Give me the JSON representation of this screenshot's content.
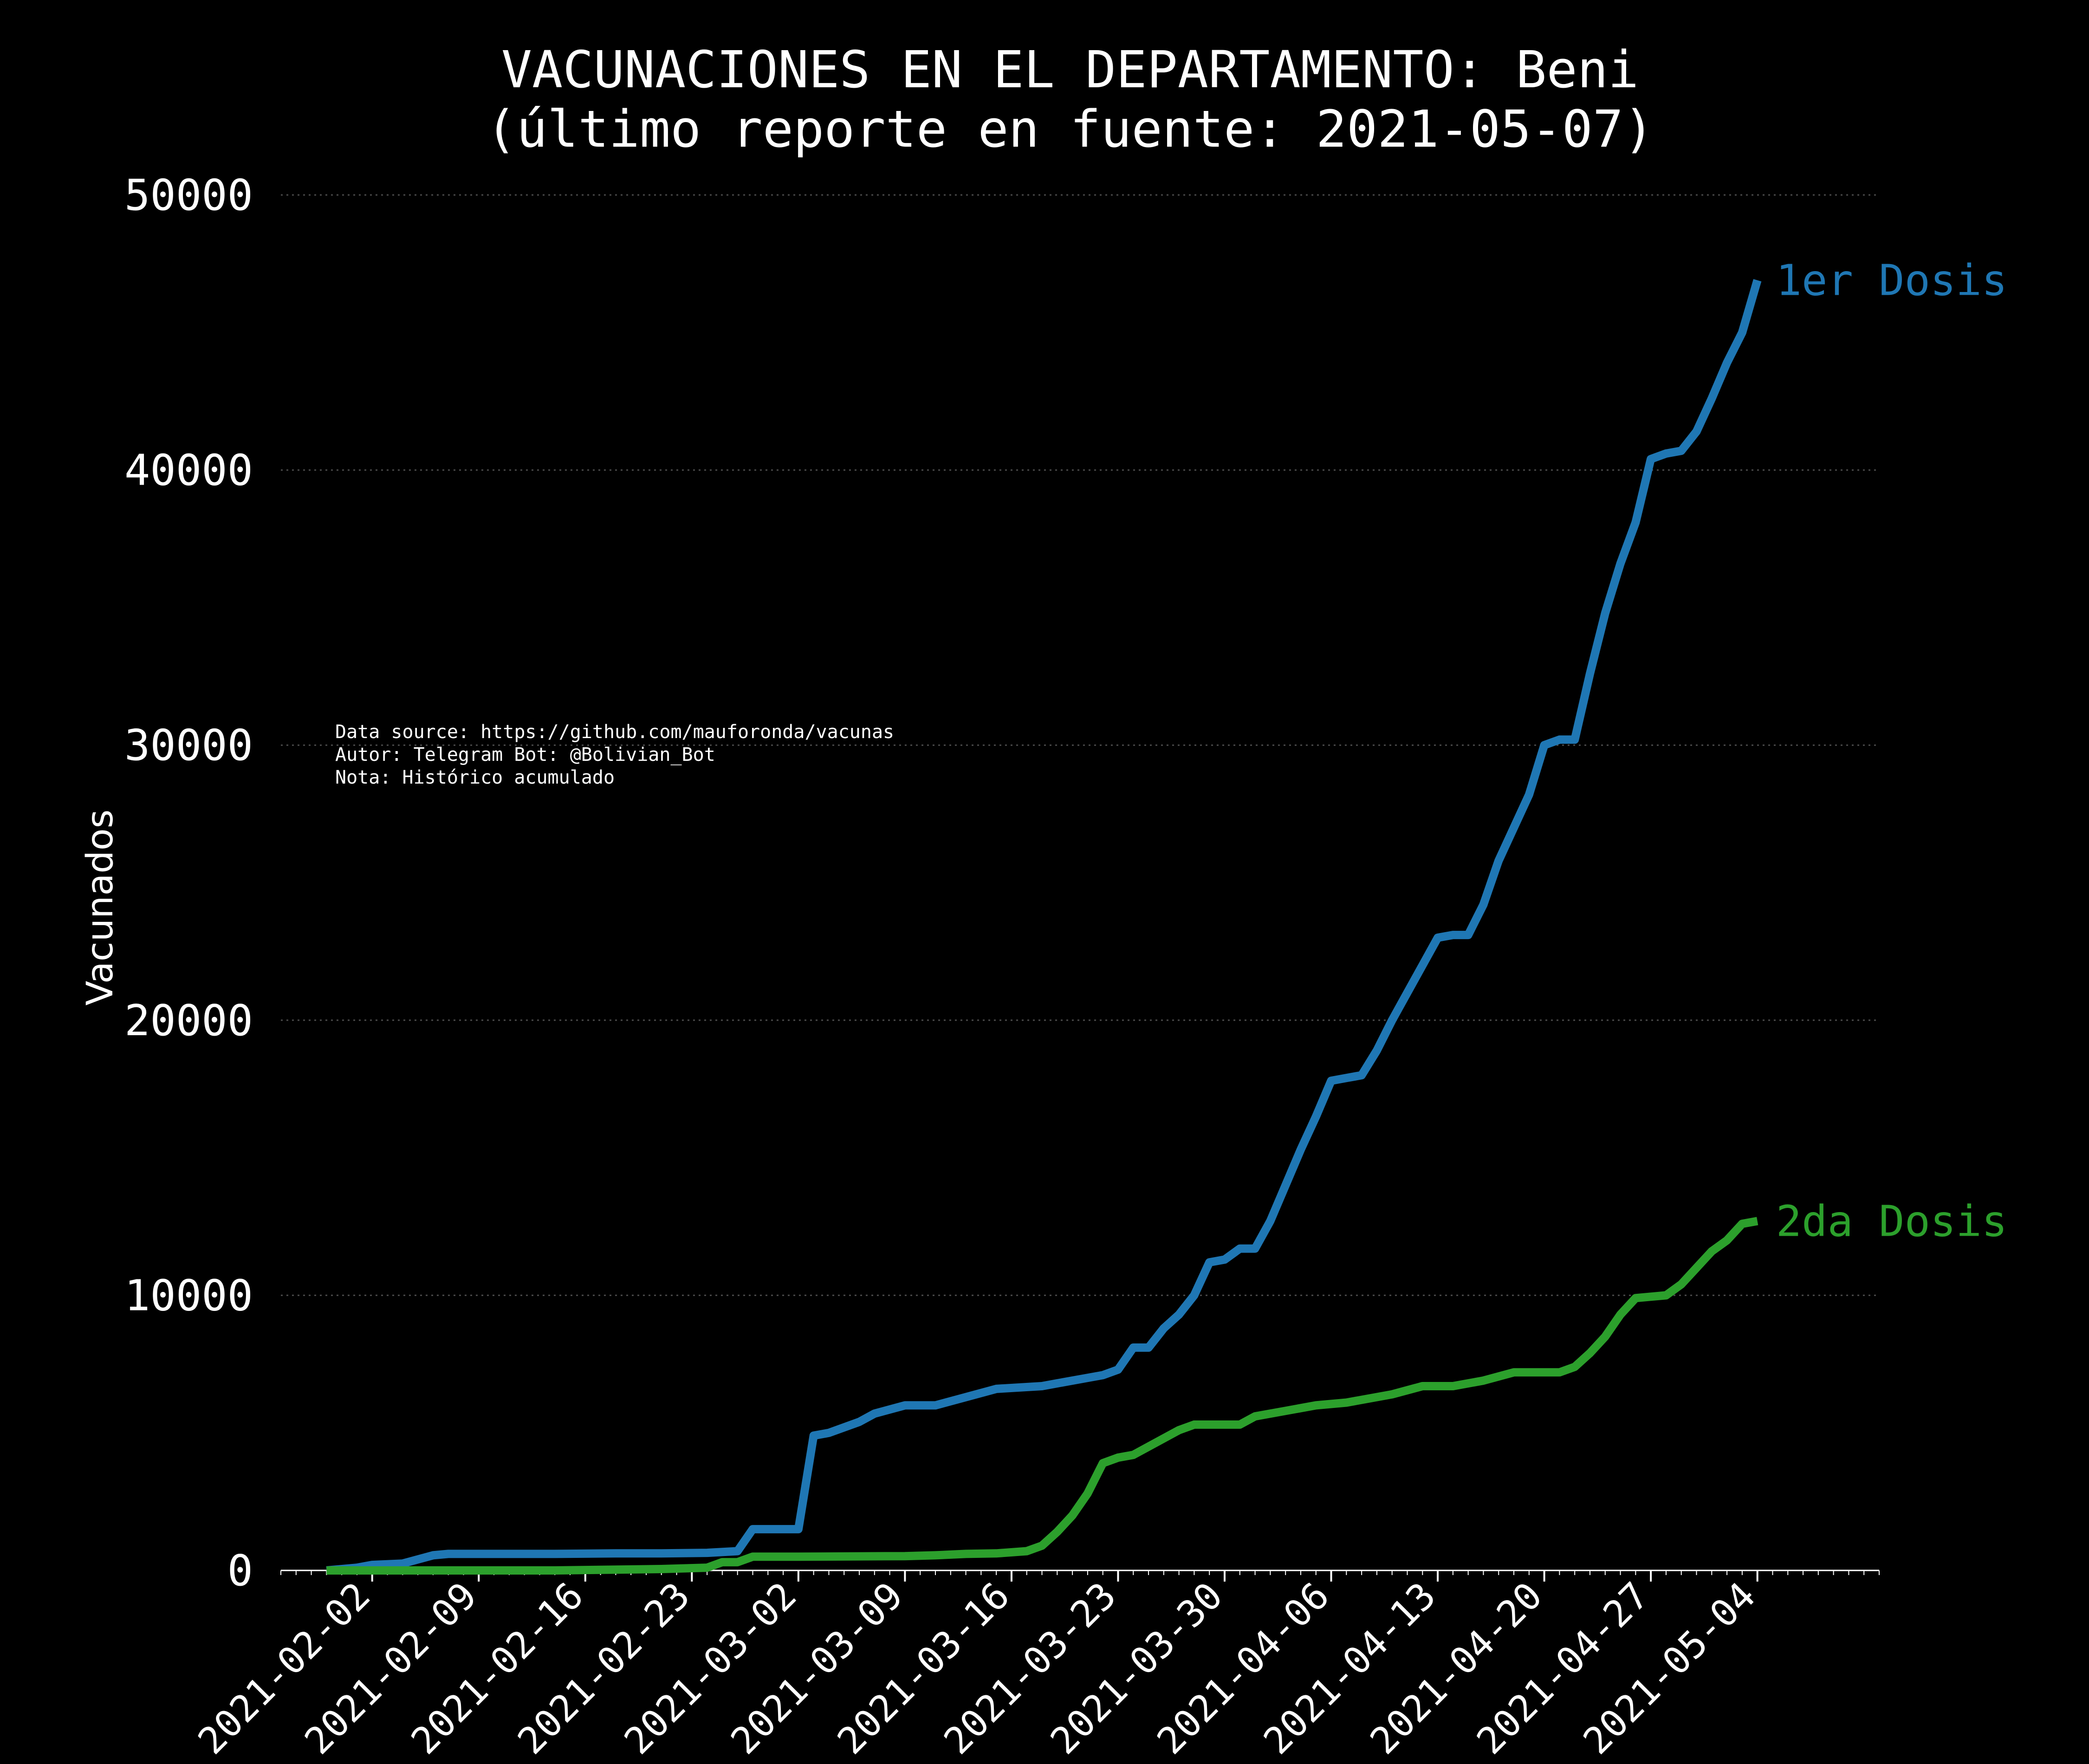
{
  "chart_data": {
    "type": "line",
    "title_line1": "VACUNACIONES EN EL DEPARTAMENTO: Beni",
    "title_line2": "(último reporte en fuente: 2021-05-07)",
    "ylabel": "Vacunados",
    "xlabel": "",
    "ylim": [
      0,
      50000
    ],
    "xlim": [
      "2021-01-27",
      "2021-05-12"
    ],
    "grid": "horizontal dotted",
    "y_ticks": [
      0,
      10000,
      20000,
      30000,
      40000,
      50000
    ],
    "x_ticks": [
      "2021-02-02",
      "2021-02-09",
      "2021-02-16",
      "2021-02-23",
      "2021-03-02",
      "2021-03-09",
      "2021-03-16",
      "2021-03-23",
      "2021-03-30",
      "2021-04-06",
      "2021-04-13",
      "2021-04-20",
      "2021-04-27",
      "2021-05-04"
    ],
    "annotation": [
      "Data source: https://github.com/mauforonda/vacunas",
      "Autor: Telegram Bot: @Bolivian_Bot",
      "Nota: Histórico acumulado"
    ],
    "series": [
      {
        "name": "1er Dosis",
        "color": "#1f77b4",
        "points": [
          [
            "2021-01-30",
            0
          ],
          [
            "2021-02-01",
            100
          ],
          [
            "2021-02-02",
            200
          ],
          [
            "2021-02-04",
            250
          ],
          [
            "2021-02-06",
            550
          ],
          [
            "2021-02-07",
            600
          ],
          [
            "2021-02-10",
            600
          ],
          [
            "2021-02-14",
            600
          ],
          [
            "2021-02-18",
            620
          ],
          [
            "2021-02-21",
            620
          ],
          [
            "2021-02-24",
            640
          ],
          [
            "2021-02-26",
            700
          ],
          [
            "2021-02-27",
            1500
          ],
          [
            "2021-03-01",
            1500
          ],
          [
            "2021-03-02",
            1500
          ],
          [
            "2021-03-03",
            4900
          ],
          [
            "2021-03-04",
            5000
          ],
          [
            "2021-03-06",
            5400
          ],
          [
            "2021-03-07",
            5700
          ],
          [
            "2021-03-09",
            6000
          ],
          [
            "2021-03-11",
            6000
          ],
          [
            "2021-03-13",
            6300
          ],
          [
            "2021-03-15",
            6600
          ],
          [
            "2021-03-18",
            6700
          ],
          [
            "2021-03-19",
            6800
          ],
          [
            "2021-03-21",
            7000
          ],
          [
            "2021-03-22",
            7100
          ],
          [
            "2021-03-23",
            7300
          ],
          [
            "2021-03-24",
            8100
          ],
          [
            "2021-03-25",
            8100
          ],
          [
            "2021-03-26",
            8800
          ],
          [
            "2021-03-27",
            9300
          ],
          [
            "2021-03-28",
            10000
          ],
          [
            "2021-03-29",
            11200
          ],
          [
            "2021-03-30",
            11300
          ],
          [
            "2021-03-31",
            11700
          ],
          [
            "2021-04-01",
            11700
          ],
          [
            "2021-04-02",
            12700
          ],
          [
            "2021-04-03",
            14000
          ],
          [
            "2021-04-04",
            15300
          ],
          [
            "2021-04-05",
            16500
          ],
          [
            "2021-04-06",
            17800
          ],
          [
            "2021-04-07",
            17900
          ],
          [
            "2021-04-08",
            18000
          ],
          [
            "2021-04-09",
            18900
          ],
          [
            "2021-04-10",
            20000
          ],
          [
            "2021-04-11",
            21000
          ],
          [
            "2021-04-12",
            22000
          ],
          [
            "2021-04-13",
            23000
          ],
          [
            "2021-04-14",
            23100
          ],
          [
            "2021-04-15",
            23100
          ],
          [
            "2021-04-16",
            24200
          ],
          [
            "2021-04-17",
            25800
          ],
          [
            "2021-04-18",
            27000
          ],
          [
            "2021-04-19",
            28200
          ],
          [
            "2021-04-20",
            30000
          ],
          [
            "2021-04-21",
            30200
          ],
          [
            "2021-04-22",
            30200
          ],
          [
            "2021-04-23",
            32600
          ],
          [
            "2021-04-24",
            34800
          ],
          [
            "2021-04-25",
            36600
          ],
          [
            "2021-04-26",
            38100
          ],
          [
            "2021-04-27",
            40400
          ],
          [
            "2021-04-28",
            40600
          ],
          [
            "2021-04-29",
            40700
          ],
          [
            "2021-04-30",
            41400
          ],
          [
            "2021-05-01",
            42600
          ],
          [
            "2021-05-02",
            43900
          ],
          [
            "2021-05-03",
            45000
          ],
          [
            "2021-05-04",
            46900
          ]
        ]
      },
      {
        "name": "2da Dosis",
        "color": "#2ca02c",
        "points": [
          [
            "2021-01-30",
            0
          ],
          [
            "2021-02-14",
            0
          ],
          [
            "2021-02-21",
            50
          ],
          [
            "2021-02-24",
            100
          ],
          [
            "2021-02-25",
            300
          ],
          [
            "2021-02-26",
            300
          ],
          [
            "2021-02-27",
            500
          ],
          [
            "2021-03-02",
            500
          ],
          [
            "2021-03-09",
            520
          ],
          [
            "2021-03-11",
            550
          ],
          [
            "2021-03-13",
            600
          ],
          [
            "2021-03-15",
            620
          ],
          [
            "2021-03-17",
            700
          ],
          [
            "2021-03-18",
            900
          ],
          [
            "2021-03-19",
            1400
          ],
          [
            "2021-03-20",
            2000
          ],
          [
            "2021-03-21",
            2800
          ],
          [
            "2021-03-22",
            3900
          ],
          [
            "2021-03-23",
            4100
          ],
          [
            "2021-03-24",
            4200
          ],
          [
            "2021-03-25",
            4500
          ],
          [
            "2021-03-26",
            4800
          ],
          [
            "2021-03-27",
            5100
          ],
          [
            "2021-03-28",
            5300
          ],
          [
            "2021-03-29",
            5300
          ],
          [
            "2021-03-30",
            5300
          ],
          [
            "2021-03-31",
            5300
          ],
          [
            "2021-04-01",
            5600
          ],
          [
            "2021-04-03",
            5800
          ],
          [
            "2021-04-05",
            6000
          ],
          [
            "2021-04-07",
            6100
          ],
          [
            "2021-04-10",
            6400
          ],
          [
            "2021-04-12",
            6700
          ],
          [
            "2021-04-14",
            6700
          ],
          [
            "2021-04-16",
            6900
          ],
          [
            "2021-04-18",
            7200
          ],
          [
            "2021-04-20",
            7200
          ],
          [
            "2021-04-21",
            7200
          ],
          [
            "2021-04-22",
            7400
          ],
          [
            "2021-04-23",
            7900
          ],
          [
            "2021-04-24",
            8500
          ],
          [
            "2021-04-25",
            9300
          ],
          [
            "2021-04-26",
            9900
          ],
          [
            "2021-04-28",
            10000
          ],
          [
            "2021-04-29",
            10400
          ],
          [
            "2021-04-30",
            11000
          ],
          [
            "2021-05-01",
            11600
          ],
          [
            "2021-05-02",
            12000
          ],
          [
            "2021-05-03",
            12600
          ],
          [
            "2021-05-04",
            12700
          ]
        ]
      }
    ]
  }
}
